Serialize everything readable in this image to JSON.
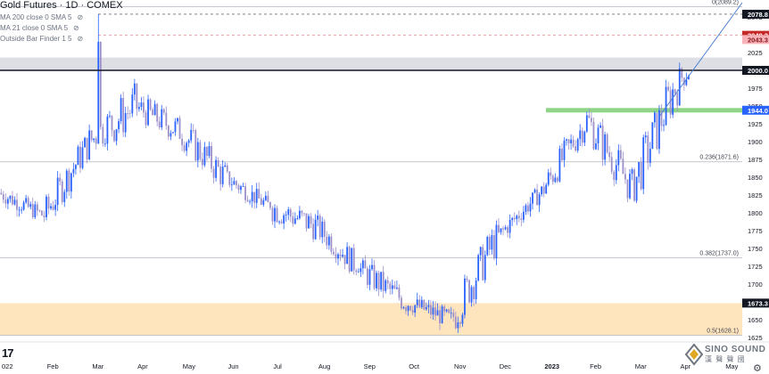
{
  "legend": {
    "title": "Gold Futures · 1D · COMEX",
    "indicators": [
      "MA 200 close 0 SMA 5",
      "MA 21 close 0 SMA 5",
      "Outside Bar Finder 1 5"
    ]
  },
  "tv_logo": "17",
  "watermark": {
    "line1": "SINO SOUND",
    "line2": "漢 聲 聲 國"
  },
  "colors": {
    "up": "#2962ff",
    "down": "#9c8fc9",
    "zone_gray": "#d1d4dc",
    "zone_orange": "#ffe0b2",
    "support_green": "#8fd487",
    "label_red": "#c62828",
    "label_pink": "#f8b3b8",
    "label_black": "#131722",
    "label_blue": "#2962ff",
    "trendline": "#4a7fd6",
    "grid": "#e0e3eb"
  },
  "chart_data": {
    "type": "candlestick",
    "ylim": [
      1615,
      2100
    ],
    "y_ticks": [
      1625,
      1650,
      1675,
      1700,
      1725,
      1750,
      1775,
      1800,
      1825,
      1850,
      1875,
      1900,
      1925,
      1950,
      1975,
      2000,
      2025,
      2050,
      2075
    ],
    "x_ticks": [
      "022",
      "Feb",
      "Mar",
      "Apr",
      "May",
      "Jun",
      "Jul",
      "Aug",
      "Sep",
      "Oct",
      "Nov",
      "Dec",
      "2023",
      "Feb",
      "Mar",
      "Apr",
      "May"
    ],
    "price_labels": [
      {
        "text": "2078.8",
        "value": 2078.8,
        "style": "black"
      },
      {
        "text": "2049.2",
        "value": 2049.2,
        "style": "red"
      },
      {
        "text": "2043.3",
        "value": 2043.3,
        "style": "pink"
      },
      {
        "text": "2000.0",
        "value": 2000.0,
        "style": "black"
      },
      {
        "text": "1944.0",
        "value": 1944.0,
        "style": "blue"
      },
      {
        "text": "1673.3",
        "value": 1673.3,
        "style": "black"
      }
    ],
    "fib_levels": [
      {
        "label": "0(2089.2)",
        "value": 2089.2
      },
      {
        "label": "0.236(1871.6)",
        "value": 1871.6
      },
      {
        "label": "0.382(1737.0)",
        "value": 1737.0
      },
      {
        "label": "0.5(1628.1)",
        "value": 1628.1
      }
    ],
    "zones": [
      {
        "name": "resistance",
        "from": 2000,
        "to": 2018
      },
      {
        "name": "support",
        "from": 1628.1,
        "to": 1673.3
      }
    ],
    "support_line": 1944,
    "series": [
      {
        "month": "Jan 2022",
        "open": 1828,
        "close": 1796,
        "low": 1780,
        "high": 1850
      },
      {
        "month": "Feb 2022",
        "open": 1796,
        "close": 1900,
        "low": 1785,
        "high": 1920
      },
      {
        "month": "Mar 2022",
        "open": 1900,
        "close": 1950,
        "low": 1895,
        "high": 2078.8
      },
      {
        "month": "Apr 2022",
        "open": 1950,
        "close": 1915,
        "low": 1885,
        "high": 2000
      },
      {
        "month": "May 2022",
        "open": 1915,
        "close": 1850,
        "low": 1790,
        "high": 1920
      },
      {
        "month": "Jun 2022",
        "open": 1850,
        "close": 1808,
        "low": 1805,
        "high": 1880
      },
      {
        "month": "Jul 2022",
        "open": 1808,
        "close": 1782,
        "low": 1695,
        "high": 1815
      },
      {
        "month": "Aug 2022",
        "open": 1782,
        "close": 1720,
        "low": 1715,
        "high": 1820
      },
      {
        "month": "Sep 2022",
        "open": 1720,
        "close": 1675,
        "low": 1625,
        "high": 1735
      },
      {
        "month": "Oct 2022",
        "open": 1675,
        "close": 1650,
        "low": 1620,
        "high": 1700
      },
      {
        "month": "Nov 2022",
        "open": 1650,
        "close": 1765,
        "low": 1620,
        "high": 1785
      },
      {
        "month": "Dec 2022",
        "open": 1765,
        "close": 1830,
        "low": 1765,
        "high": 1840
      },
      {
        "month": "Jan 2023",
        "open": 1830,
        "close": 1930,
        "low": 1825,
        "high": 1950
      },
      {
        "month": "Feb 2023",
        "open": 1930,
        "close": 1835,
        "low": 1815,
        "high": 1975
      },
      {
        "month": "Mar 2023",
        "open": 1835,
        "close": 1985,
        "low": 1815,
        "high": 2015
      },
      {
        "month": "Apr 2023",
        "open": 1985,
        "close": 2043.3,
        "low": 1945,
        "high": 2049.2
      }
    ]
  }
}
